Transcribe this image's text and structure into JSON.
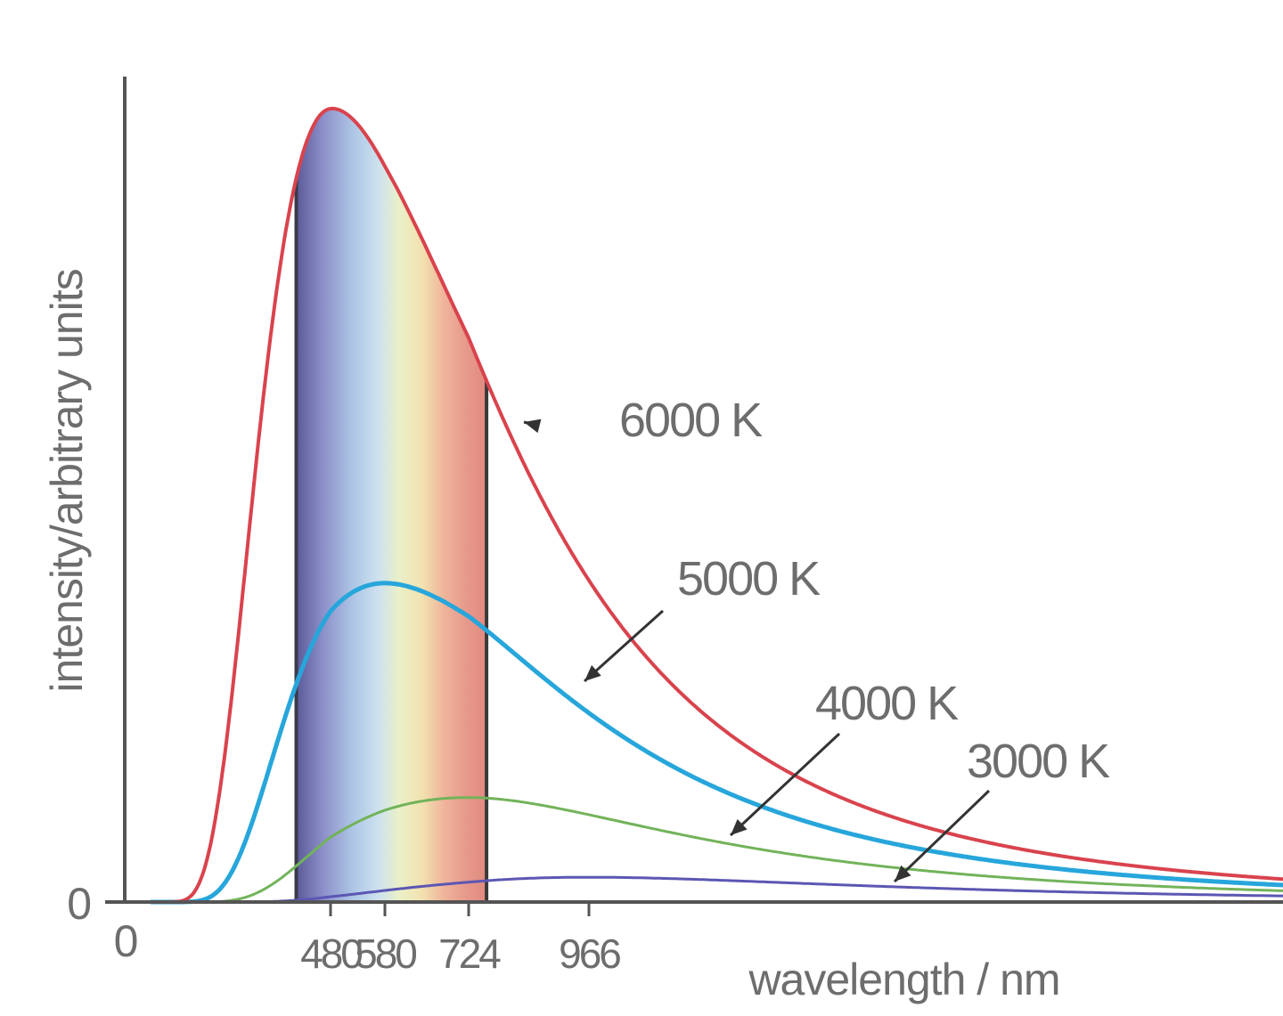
{
  "chart_data": {
    "type": "line",
    "title": "",
    "xlabel": "wavelength / nm",
    "ylabel": "intensity/arbitrary units",
    "x_origin_label": "0",
    "y_origin_label": "0",
    "x_ticks": [
      480,
      580,
      724,
      966
    ],
    "x_tick_labels": [
      "480",
      "580",
      "724",
      "966"
    ],
    "visible_band": {
      "from_nm": 400,
      "to_nm": 760
    },
    "xlim": [
      0,
      2400
    ],
    "ylim": [
      0,
      1
    ],
    "grid": false,
    "legend": "none",
    "series": [
      {
        "name": "6000 K",
        "temperature_k": 6000,
        "peak_nm": 480,
        "peak_value": 1.0,
        "color": "#d9434d"
      },
      {
        "name": "5000 K",
        "temperature_k": 5000,
        "peak_nm": 580,
        "peak_value": 0.402,
        "color": "#27a6db"
      },
      {
        "name": "4000 K",
        "temperature_k": 4000,
        "peak_nm": 724,
        "peak_value": 0.132,
        "color": "#72b35a"
      },
      {
        "name": "3000 K",
        "temperature_k": 3000,
        "peak_nm": 966,
        "peak_value": 0.042,
        "color": "#5b57b3"
      }
    ]
  }
}
